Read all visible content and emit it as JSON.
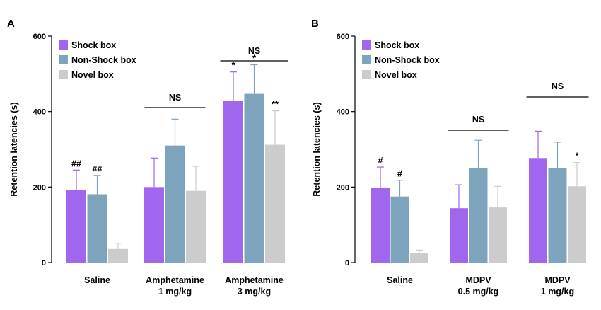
{
  "chart_data": [
    {
      "panel": "A",
      "type": "bar",
      "ylabel": "Retention latencies (s)",
      "ylim": [
        0,
        600
      ],
      "yticks": [
        "0",
        "200",
        "400",
        "600"
      ],
      "legend": [
        "Shock box",
        "Non-Shock box",
        "Novel box"
      ],
      "groups": [
        {
          "label": [
            "Saline"
          ],
          "values": [
            193,
            181,
            36
          ],
          "errors": [
            52,
            50,
            15
          ],
          "marks": [
            "##",
            "##",
            ""
          ],
          "bracket": ""
        },
        {
          "label": [
            "Amphetamine",
            "1 mg/kg"
          ],
          "values": [
            200,
            310,
            190
          ],
          "errors": [
            77,
            70,
            65
          ],
          "marks": [
            "",
            "",
            ""
          ],
          "bracket": "NS"
        },
        {
          "label": [
            "Amphetamine",
            "3 mg/kg"
          ],
          "values": [
            428,
            447,
            312
          ],
          "errors": [
            77,
            77,
            90
          ],
          "marks": [
            "*",
            "*",
            "**"
          ],
          "bracket": "NS"
        }
      ]
    },
    {
      "panel": "B",
      "type": "bar",
      "ylabel": "Retention latencies (s)",
      "ylim": [
        0,
        600
      ],
      "yticks": [
        "0",
        "200",
        "400",
        "600"
      ],
      "legend": [
        "Shock box",
        "Non-Shock box",
        "Novel box"
      ],
      "groups": [
        {
          "label": [
            "Saline"
          ],
          "values": [
            198,
            175,
            25
          ],
          "errors": [
            55,
            43,
            8
          ],
          "marks": [
            "#",
            "#",
            ""
          ],
          "bracket": ""
        },
        {
          "label": [
            "MDPV",
            "0.5 mg/kg"
          ],
          "values": [
            144,
            251,
            146
          ],
          "errors": [
            62,
            73,
            56
          ],
          "marks": [
            "",
            "",
            ""
          ],
          "bracket": "NS"
        },
        {
          "label": [
            "MDPV",
            "1 mg/kg"
          ],
          "values": [
            277,
            251,
            202
          ],
          "errors": [
            71,
            68,
            63
          ],
          "marks": [
            "",
            "",
            "*"
          ],
          "bracket": "NS"
        }
      ]
    }
  ],
  "colors": {
    "shock": "#a066ee",
    "non_shock": "#7ea3bd",
    "novel": "#cccccc",
    "axis": "#000000"
  }
}
